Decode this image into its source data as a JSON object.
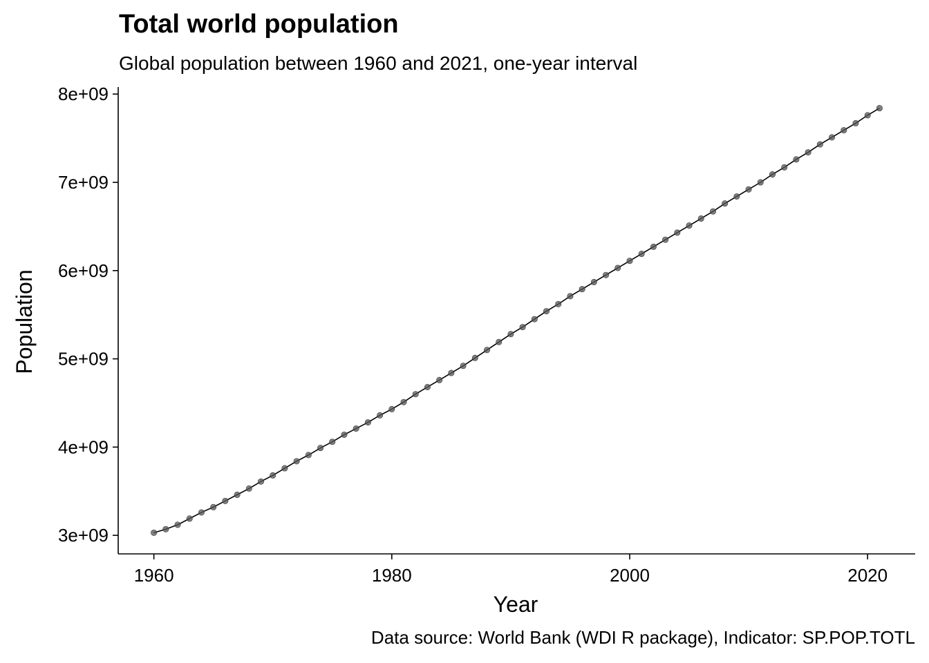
{
  "chart_data": {
    "type": "line",
    "title": "Total world population",
    "subtitle": "Global population between 1960 and 2021, one-year interval",
    "caption": "Data source: World Bank (WDI R package), Indicator: SP.POP.TOTL",
    "xlabel": "Year",
    "ylabel": "Population",
    "xlim": [
      1957,
      2024
    ],
    "ylim": [
      2790000000,
      8080000000
    ],
    "x_ticks": [
      {
        "value": 1960,
        "label": "1960"
      },
      {
        "value": 1980,
        "label": "1980"
      },
      {
        "value": 2000,
        "label": "2000"
      },
      {
        "value": 2020,
        "label": "2020"
      }
    ],
    "y_ticks": [
      {
        "value": 3000000000,
        "label": "3e+09"
      },
      {
        "value": 4000000000,
        "label": "4e+09"
      },
      {
        "value": 5000000000,
        "label": "5e+09"
      },
      {
        "value": 6000000000,
        "label": "6e+09"
      },
      {
        "value": 7000000000,
        "label": "7e+09"
      },
      {
        "value": 8000000000,
        "label": "8e+09"
      }
    ],
    "grid": false,
    "x": [
      1960,
      1961,
      1962,
      1963,
      1964,
      1965,
      1966,
      1967,
      1968,
      1969,
      1970,
      1971,
      1972,
      1973,
      1974,
      1975,
      1976,
      1977,
      1978,
      1979,
      1980,
      1981,
      1982,
      1983,
      1984,
      1985,
      1986,
      1987,
      1988,
      1989,
      1990,
      1991,
      1992,
      1993,
      1994,
      1995,
      1996,
      1997,
      1998,
      1999,
      2000,
      2001,
      2002,
      2003,
      2004,
      2005,
      2006,
      2007,
      2008,
      2009,
      2010,
      2011,
      2012,
      2013,
      2014,
      2015,
      2016,
      2017,
      2018,
      2019,
      2020,
      2021
    ],
    "values": [
      3030000000,
      3070000000,
      3120000000,
      3190000000,
      3260000000,
      3320000000,
      3390000000,
      3460000000,
      3530000000,
      3610000000,
      3680000000,
      3760000000,
      3840000000,
      3910000000,
      3990000000,
      4060000000,
      4140000000,
      4210000000,
      4280000000,
      4360000000,
      4430000000,
      4510000000,
      4600000000,
      4680000000,
      4760000000,
      4840000000,
      4920000000,
      5010000000,
      5100000000,
      5190000000,
      5280000000,
      5360000000,
      5450000000,
      5540000000,
      5620000000,
      5710000000,
      5790000000,
      5870000000,
      5950000000,
      6030000000,
      6110000000,
      6190000000,
      6270000000,
      6350000000,
      6430000000,
      6510000000,
      6590000000,
      6670000000,
      6760000000,
      6840000000,
      6920000000,
      7000000000,
      7090000000,
      7170000000,
      7260000000,
      7340000000,
      7430000000,
      7510000000,
      7590000000,
      7670000000,
      7760000000,
      7840000000
    ]
  }
}
